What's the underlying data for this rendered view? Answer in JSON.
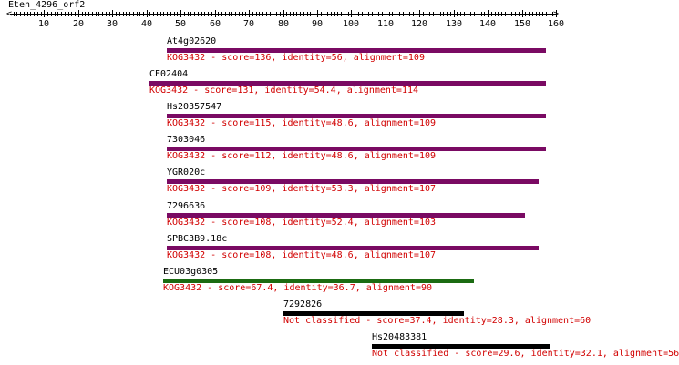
{
  "sequence_title": "Eten_4296_orf2",
  "axis": {
    "min": 0,
    "max": 160,
    "ticks": [
      10,
      20,
      30,
      40,
      50,
      60,
      70,
      80,
      90,
      100,
      110,
      120,
      130,
      140,
      150,
      160
    ]
  },
  "colors": {
    "purple": "#7a0a63",
    "green": "#1b6b12",
    "black": "#000000",
    "desc_red": "#d10000"
  },
  "hits": [
    {
      "name": "At4g02620",
      "start": 46,
      "end": 157,
      "color": "purple",
      "description": "KOG3432 - score=136, identity=56, alignment=109"
    },
    {
      "name": "CE02404",
      "start": 41,
      "end": 157,
      "color": "purple",
      "description": "KOG3432 - score=131, identity=54.4, alignment=114"
    },
    {
      "name": "Hs20357547",
      "start": 46,
      "end": 157,
      "color": "purple",
      "description": "KOG3432 - score=115, identity=48.6, alignment=109"
    },
    {
      "name": "7303046",
      "start": 46,
      "end": 157,
      "color": "purple",
      "description": "KOG3432 - score=112, identity=48.6, alignment=109"
    },
    {
      "name": "YGR020c",
      "start": 46,
      "end": 155,
      "color": "purple",
      "description": "KOG3432 - score=109, identity=53.3, alignment=107"
    },
    {
      "name": "7296636",
      "start": 46,
      "end": 151,
      "color": "purple",
      "description": "KOG3432 - score=108, identity=52.4, alignment=103"
    },
    {
      "name": "SPBC3B9.18c",
      "start": 46,
      "end": 155,
      "color": "purple",
      "description": "KOG3432 - score=108, identity=48.6, alignment=107"
    },
    {
      "name": "ECU03g0305",
      "start": 45,
      "end": 136,
      "color": "green",
      "description": "KOG3432 - score=67.4, identity=36.7, alignment=90"
    },
    {
      "name": "7292826",
      "start": 80,
      "end": 133,
      "color": "black",
      "description": "Not classified - score=37.4, identity=28.3, alignment=60"
    },
    {
      "name": "Hs20483381",
      "start": 106,
      "end": 158,
      "color": "black",
      "description": "Not classified - score=29.6, identity=32.1, alignment=56"
    }
  ]
}
